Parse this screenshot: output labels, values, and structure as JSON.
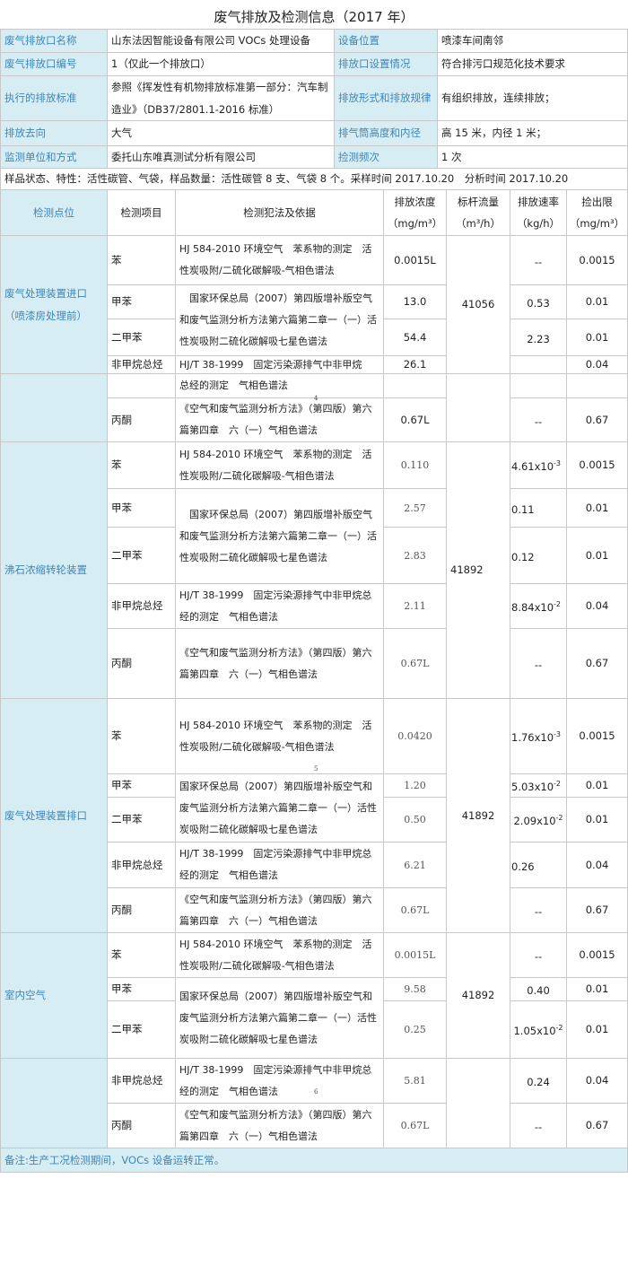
{
  "title": "废气排放及检测信息（2017 年）",
  "info": [
    {
      "label": "废气排放口名称",
      "value": "山东法因智能设备有限公司 VOCs 处理设备",
      "label2": "设备位置",
      "value2": "喷漆车间南邻"
    },
    {
      "label": "废气排放口编号",
      "value": "1（仅此一个排放口）",
      "label2": "排放口设置情况",
      "value2": "符合排污口规范化技术要求"
    },
    {
      "label": "执行的排放标准",
      "value": "参照《挥发性有机物排放标准第一部分：汽车制造业》（DB37/2801.1-2016 标准）",
      "label2": "排放形式和排放规律",
      "value2": "有组织排放，连续排放；"
    },
    {
      "label": "排放去向",
      "value": "大气",
      "label2": "排气筒高度和内径",
      "value2": "高 15 米，内径 1 米；"
    },
    {
      "label": "监测单位和方式",
      "value": "委托山东唯真测试分析有限公司",
      "label2": "捡测频次",
      "value2": "1 次"
    }
  ],
  "sample_note": "样品状态、特性：活性碳管、气袋，样品数量：活性碳管 8 支、气袋 8 个。采样时间 2017.10.20　分析时间 2017.10.20",
  "header": {
    "location": "检测点位",
    "item": "检测项目",
    "method": "检测犯法及依据",
    "conc": "排放浓度",
    "conc_unit": "（mg/m³）",
    "flow": "标杆流量",
    "flow_unit": "（m³/h）",
    "rate": "排放速率",
    "rate_unit": "（kg/h）",
    "limit": "捡出限",
    "limit_unit": "（mg/m³）"
  },
  "sections": [
    {
      "location": "废气处理装置进口（喷漆房处理前）",
      "flow": "41056",
      "rows": [
        {
          "item": "苯",
          "conc": "0.0015L",
          "rate": "--",
          "rate_exp": "",
          "limit": "0.0015"
        },
        {
          "item": "甲苯",
          "conc": "13.0",
          "rate": "0.53",
          "rate_exp": "",
          "limit": "0.01"
        },
        {
          "item": "二甲苯",
          "conc": "54.4",
          "rate": "2.23",
          "rate_exp": "",
          "limit": "0.01"
        },
        {
          "item": "非甲烷总烃",
          "conc": "26.1",
          "rate": "",
          "rate_exp": "",
          "limit": "0.04"
        },
        {
          "item": "丙酮",
          "conc": "0.67L",
          "rate": "--",
          "rate_exp": "",
          "limit": "0.67"
        }
      ],
      "methods": [
        "HJ 584-2010 环境空气　苯系物的测定　活性炭吸附/二硫化碳解吸-气相色谱法",
        "　国家环保总局（2007）第四版增补版空气和废气监测分析方法第六篇第二章一（一）活性炭吸附二硫化碳解吸七星色谱法",
        "HJ/T 38-1999　固定污染源排气中非甲烷",
        "总经的测定　气相色谱法",
        "《空气和废气监测分析方法》（第四版）第六篇第四章　六（一）气相色谱法"
      ],
      "page_mark": "4"
    },
    {
      "location": "沸石浓缩转轮装置",
      "flow": "41892",
      "rows": [
        {
          "item": "苯",
          "conc": "0.110",
          "rate": "4.61x10",
          "rate_exp": "-3",
          "limit": "0.0015"
        },
        {
          "item": "甲苯",
          "conc": "2.57",
          "rate": "0.11",
          "rate_exp": "",
          "limit": "0.01"
        },
        {
          "item": "二甲苯",
          "conc": "2.83",
          "rate": "0.12",
          "rate_exp": "",
          "limit": "0.01"
        },
        {
          "item": "非甲烷总烃",
          "conc": "2.11",
          "rate": "8.84x10",
          "rate_exp": "-2",
          "limit": "0.04"
        },
        {
          "item": "丙酮",
          "conc": "0.67L",
          "rate": "--",
          "rate_exp": "",
          "limit": "0.67"
        }
      ],
      "methods": [
        "HJ 584-2010 环境空气　苯系物的测定　活性炭吸附/二硫化碳解吸-气相色谱法",
        "　国家环保总局（2007）第四版增补版空气和废气监测分析方法第六篇第二章一（一）活性炭吸附二硫化碳解吸七星色谱法",
        "HJ/T 38-1999　固定污染源排气中非甲烷总经的测定　气相色谱法",
        "《空气和废气监测分析方法》（第四版）第六篇第四章　六（一）气相色谱法"
      ]
    },
    {
      "location": "废气处理装置排口",
      "flow": "41892",
      "rows": [
        {
          "item": "苯",
          "conc": "0.0420",
          "rate": "1.76x10",
          "rate_exp": "-3",
          "limit": "0.0015"
        },
        {
          "item": "甲苯",
          "conc": "1.20",
          "rate": "5.03x10",
          "rate_exp": "-2",
          "limit": "0.01"
        },
        {
          "item": "二甲苯",
          "conc": "0.50",
          "rate": "2.09x10",
          "rate_exp": "-2",
          "limit": "0.01"
        },
        {
          "item": "非甲烷总烃",
          "conc": "6.21",
          "rate": "0.26",
          "rate_exp": "",
          "limit": "0.04"
        },
        {
          "item": "丙酮",
          "conc": "0.67L",
          "rate": "--",
          "rate_exp": "",
          "limit": "0.67"
        }
      ],
      "methods": [
        "HJ 584-2010 环境空气　苯系物的测定　活性炭吸附/二硫化碳解吸-气相色谱法",
        "国家环保总局（2007）第四版增补版空气和废气监测分析方法第六篇第二章一（一）活性炭吸附二硫化碳解吸七星色谱法",
        "HJ/T 38-1999　固定污染源排气中非甲烷总经的测定　气相色谱法",
        "《空气和废气监测分析方法》（第四版）第六篇第四章　六（一）气相色谱法"
      ],
      "page_mark": "5"
    },
    {
      "location": "室内空气",
      "flow": "41892",
      "rows": [
        {
          "item": "苯",
          "conc": "0.0015L",
          "rate": "--",
          "rate_exp": "",
          "limit": "0.0015"
        },
        {
          "item": "甲苯",
          "conc": "9.58",
          "rate": "0.40",
          "rate_exp": "",
          "limit": "0.01"
        },
        {
          "item": "二甲苯",
          "conc": "0.25",
          "rate": "1.05x10",
          "rate_exp": "-2",
          "limit": "0.01"
        },
        {
          "item": "非甲烷总烃",
          "conc": "5.81",
          "rate": "0.24",
          "rate_exp": "",
          "limit": "0.04"
        },
        {
          "item": "丙酮",
          "conc": "0.67L",
          "rate": "--",
          "rate_exp": "",
          "limit": "0.67"
        }
      ],
      "methods": [
        "HJ 584-2010 环境空气　苯系物的测定　活性炭吸附/二硫化碳解吸-气相色谱法",
        "国家环保总局（2007）第四版增补版空气和废气监测分析方法第六篇第二章一（一）活性炭吸附二硫化碳解吸七星色谱法",
        "HJ/T 38-1999　固定污染源排气中非甲烷总经的测定　气相色谱法",
        "《空气和废气监测分析方法》（第四版）第六篇第四章　六（一）气相色谱法"
      ],
      "page_mark": "6"
    }
  ],
  "remark": "备注:生产工况检测期间，VOCs 设备运转正常。",
  "colors": {
    "label_bg": "#d7edf4",
    "label_text": "#3d86b8",
    "border": "#c8c8c8"
  }
}
